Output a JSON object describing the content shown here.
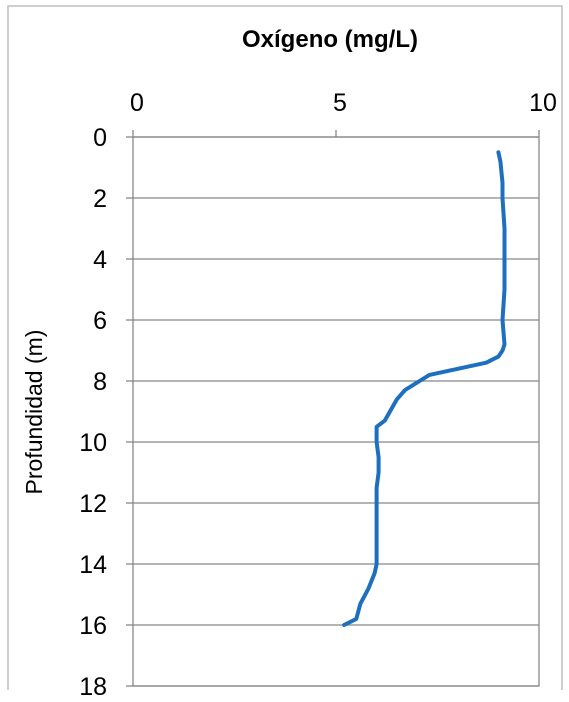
{
  "chart_data": {
    "type": "line",
    "title": "Oxígeno (mg/L)",
    "xlabel": "",
    "ylabel": "Profundidad (m)",
    "xlim": [
      0,
      10
    ],
    "ylim": [
      0,
      18
    ],
    "y_inverted": true,
    "x_axis_position": "top",
    "xticks": [
      "0",
      "5",
      "10"
    ],
    "yticks": [
      "0",
      "2",
      "4",
      "6",
      "8",
      "10",
      "12",
      "14",
      "16",
      "18"
    ],
    "grid": "horizontal",
    "legend": "none",
    "line_color": "#1f6fbf",
    "series": [
      {
        "x": [
          9.0,
          9.05,
          9.1,
          9.1,
          9.15,
          9.15,
          9.15,
          9.1,
          9.15,
          9.1,
          9.0,
          8.7,
          7.3,
          6.7,
          6.5,
          6.2,
          6.0,
          6.0,
          6.05,
          6.05,
          6.0,
          6.0,
          6.0,
          6.0,
          5.95,
          5.8,
          5.6,
          5.5,
          5.2
        ],
        "y": [
          0.5,
          0.8,
          1.5,
          2.0,
          3.0,
          4.0,
          5.0,
          6.0,
          6.8,
          7.0,
          7.2,
          7.4,
          7.8,
          8.3,
          8.6,
          9.3,
          9.5,
          10.0,
          10.5,
          11.0,
          11.5,
          12.0,
          13.0,
          14.0,
          14.3,
          14.8,
          15.3,
          15.8,
          16.0
        ]
      }
    ]
  }
}
